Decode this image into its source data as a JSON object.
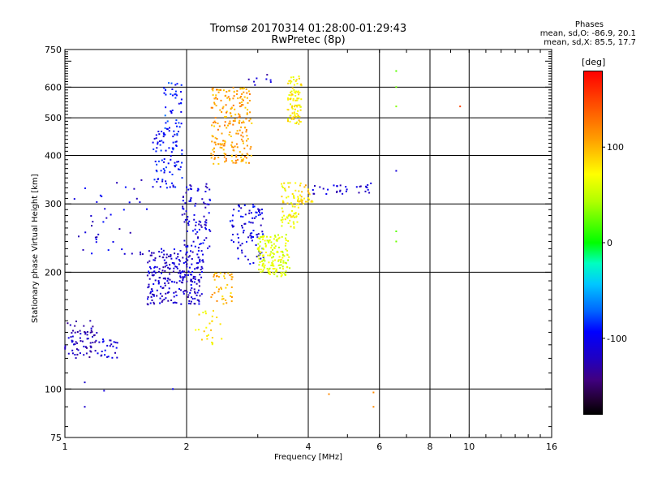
{
  "header": {
    "title_line1": "Tromsø 20170314 01:28:00-01:29:43",
    "title_line2": "RwPretec (8p)"
  },
  "phases_box": {
    "title": "Phases",
    "line1": "mean, sd,O: -86.9, 20.1",
    "line2": "mean, sd,X:  85.5, 17.7"
  },
  "colorbar": {
    "label": "deg",
    "ticks": [
      {
        "value": 100,
        "label": "100"
      },
      {
        "value": 0,
        "label": "0"
      },
      {
        "value": -100,
        "label": "-100"
      }
    ],
    "range": [
      -180,
      180
    ]
  },
  "chart_data": {
    "type": "scatter",
    "title": "Tromsø 20170314 01:28:00-01:29:43",
    "subtitle": "RwPretec (8p)",
    "xlabel": "Frequency [MHz]",
    "ylabel": "Stationary phase Virtual Height [km]",
    "x_scale": "log",
    "y_scale": "log",
    "xlim": [
      1,
      16
    ],
    "ylim": [
      75,
      750
    ],
    "x_ticks": [
      {
        "value": 1,
        "label": "1"
      },
      {
        "value": 2,
        "label": "2"
      },
      {
        "value": 4,
        "label": "4"
      },
      {
        "value": 6,
        "label": "6"
      },
      {
        "value": 8,
        "label": "8"
      },
      {
        "value": 10,
        "label": "10"
      },
      {
        "value": 16,
        "label": "16"
      }
    ],
    "y_ticks": [
      {
        "value": 75,
        "label": "75"
      },
      {
        "value": 100,
        "label": "100"
      },
      {
        "value": 200,
        "label": "200"
      },
      {
        "value": 300,
        "label": "300"
      },
      {
        "value": 400,
        "label": "400"
      },
      {
        "value": 500,
        "label": "500"
      },
      {
        "value": 600,
        "label": "600"
      },
      {
        "value": 750,
        "label": "750"
      }
    ],
    "grid_x": [
      2,
      4,
      6,
      8,
      10
    ],
    "grid_y": [
      100,
      200,
      300,
      400,
      500,
      600
    ],
    "color_encoding": "phase [deg]",
    "clusters": [
      {
        "f": [
          1.0,
          1.2
        ],
        "h": [
          120,
          150
        ],
        "phase": -125,
        "n": 70
      },
      {
        "f": [
          1.2,
          1.35
        ],
        "h": [
          120,
          135
        ],
        "phase": -110,
        "n": 25
      },
      {
        "f": [
          1.6,
          2.2
        ],
        "h": [
          165,
          230
        ],
        "phase": -115,
        "n": 260
      },
      {
        "f": [
          1.95,
          2.3
        ],
        "h": [
          230,
          340
        ],
        "phase": -110,
        "n": 90
      },
      {
        "f": [
          1.65,
          1.95
        ],
        "h": [
          330,
          470
        ],
        "phase": -95,
        "n": 90
      },
      {
        "f": [
          1.75,
          1.95
        ],
        "h": [
          470,
          620
        ],
        "phase": -85,
        "n": 40
      },
      {
        "f": [
          2.3,
          2.9
        ],
        "h": [
          380,
          600
        ],
        "phase": 110,
        "n": 220
      },
      {
        "f": [
          2.55,
          3.1
        ],
        "h": [
          210,
          300
        ],
        "phase": -105,
        "n": 90
      },
      {
        "f": [
          2.3,
          2.6
        ],
        "h": [
          165,
          200
        ],
        "phase": 105,
        "n": 40
      },
      {
        "f": [
          2.1,
          2.45
        ],
        "h": [
          130,
          160
        ],
        "phase": 85,
        "n": 25
      },
      {
        "f": [
          3.0,
          3.6
        ],
        "h": [
          195,
          250
        ],
        "phase": 60,
        "n": 160
      },
      {
        "f": [
          3.4,
          3.8
        ],
        "h": [
          260,
          340
        ],
        "phase": 75,
        "n": 70
      },
      {
        "f": [
          3.55,
          3.85
        ],
        "h": [
          480,
          640
        ],
        "phase": 80,
        "n": 90
      },
      {
        "f": [
          3.8,
          4.1
        ],
        "h": [
          300,
          340
        ],
        "phase": 95,
        "n": 25
      },
      {
        "f": [
          4.1,
          5.0
        ],
        "h": [
          318,
          335
        ],
        "phase": -115,
        "n": 20
      },
      {
        "f": [
          5.2,
          5.8
        ],
        "h": [
          320,
          340
        ],
        "phase": -115,
        "n": 12
      },
      {
        "f": [
          2.85,
          3.25
        ],
        "h": [
          590,
          650
        ],
        "phase": -120,
        "n": 8
      },
      {
        "f": [
          1.05,
          1.6
        ],
        "h": [
          220,
          360
        ],
        "phase": -110,
        "n": 40
      }
    ],
    "isolated_points": [
      {
        "f": 6.6,
        "h": 660,
        "phase": 20
      },
      {
        "f": 6.6,
        "h": 600,
        "phase": 25
      },
      {
        "f": 6.6,
        "h": 535,
        "phase": 30
      },
      {
        "f": 6.6,
        "h": 255,
        "phase": 20
      },
      {
        "f": 6.6,
        "h": 240,
        "phase": 25
      },
      {
        "f": 6.6,
        "h": 365,
        "phase": -110
      },
      {
        "f": 9.5,
        "h": 535,
        "phase": 150
      },
      {
        "f": 5.8,
        "h": 90,
        "phase": 120
      },
      {
        "f": 5.8,
        "h": 98,
        "phase": 120
      },
      {
        "f": 4.5,
        "h": 97,
        "phase": 120
      },
      {
        "f": 1.12,
        "h": 90,
        "phase": -115
      },
      {
        "f": 1.12,
        "h": 104,
        "phase": -115
      },
      {
        "f": 1.25,
        "h": 99,
        "phase": -110
      },
      {
        "f": 1.85,
        "h": 100,
        "phase": -100
      }
    ]
  }
}
